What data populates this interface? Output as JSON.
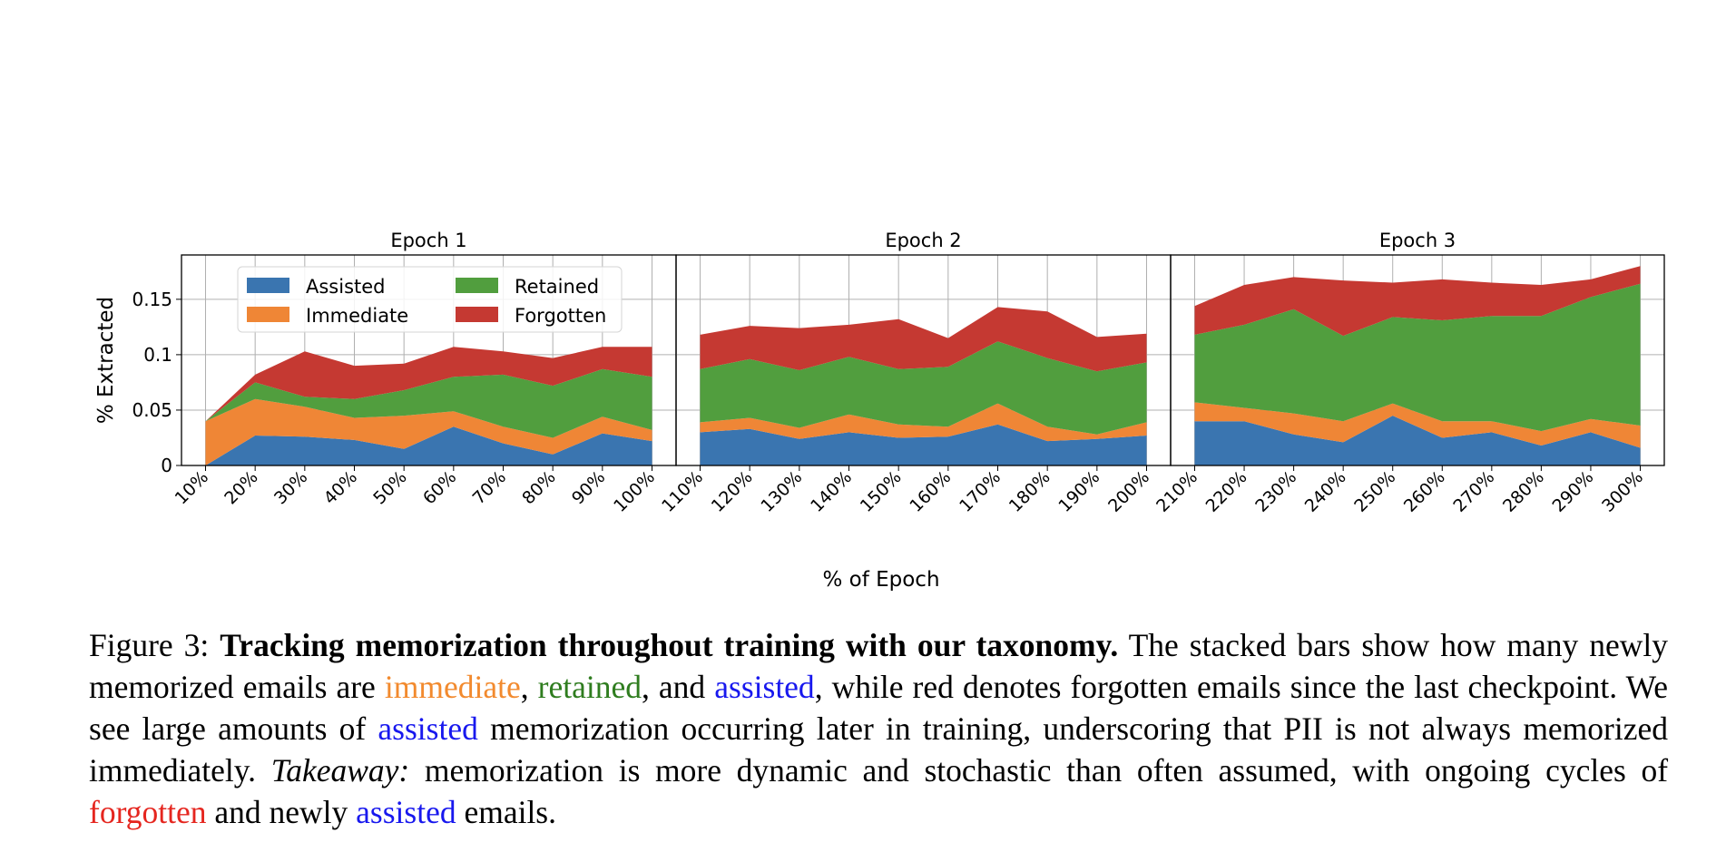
{
  "chart_data": {
    "type": "area",
    "stacked": true,
    "ylabel": "% Extracted",
    "xlabel": "% of Epoch",
    "ylim": [
      0,
      0.19
    ],
    "yticks": [
      0,
      0.05,
      0.1,
      0.15
    ],
    "ytick_labels": [
      "0",
      "0.05",
      "0.1",
      "0.15"
    ],
    "grid": true,
    "legend": {
      "placement": "upper-left of first panel",
      "columns": 2,
      "entries": [
        "Assisted",
        "Immediate",
        "Retained",
        "Forgotten"
      ]
    },
    "colors": {
      "Assisted": "#3a75b0",
      "Immediate": "#ef8636",
      "Retained": "#519e3e",
      "Forgotten": "#c53932"
    },
    "panels": [
      {
        "title": "Epoch 1",
        "x": [
          "10%",
          "20%",
          "30%",
          "40%",
          "50%",
          "60%",
          "70%",
          "80%",
          "90%",
          "100%"
        ],
        "series": [
          {
            "name": "Assisted",
            "values": [
              0,
              0.027,
              0.026,
              0.023,
              0.015,
              0.035,
              0.02,
              0.01,
              0.029,
              0.022
            ]
          },
          {
            "name": "Immediate",
            "values": [
              0.04,
              0.033,
              0.027,
              0.02,
              0.03,
              0.014,
              0.015,
              0.015,
              0.015,
              0.01
            ]
          },
          {
            "name": "Retained",
            "values": [
              0,
              0.015,
              0.009,
              0.017,
              0.023,
              0.031,
              0.047,
              0.047,
              0.043,
              0.048
            ]
          },
          {
            "name": "Forgotten",
            "values": [
              0,
              0.007,
              0.041,
              0.03,
              0.024,
              0.027,
              0.021,
              0.025,
              0.02,
              0.027
            ]
          }
        ]
      },
      {
        "title": "Epoch 2",
        "x": [
          "110%",
          "120%",
          "130%",
          "140%",
          "150%",
          "160%",
          "170%",
          "180%",
          "190%",
          "200%"
        ],
        "series": [
          {
            "name": "Assisted",
            "values": [
              0.03,
              0.033,
              0.024,
              0.03,
              0.025,
              0.026,
              0.037,
              0.022,
              0.024,
              0.027
            ]
          },
          {
            "name": "Immediate",
            "values": [
              0.009,
              0.01,
              0.01,
              0.016,
              0.012,
              0.009,
              0.019,
              0.013,
              0.004,
              0.012
            ]
          },
          {
            "name": "Retained",
            "values": [
              0.048,
              0.053,
              0.052,
              0.052,
              0.05,
              0.054,
              0.056,
              0.062,
              0.057,
              0.054
            ]
          },
          {
            "name": "Forgotten",
            "values": [
              0.031,
              0.03,
              0.038,
              0.029,
              0.045,
              0.026,
              0.031,
              0.042,
              0.031,
              0.026
            ]
          }
        ]
      },
      {
        "title": "Epoch 3",
        "x": [
          "210%",
          "220%",
          "230%",
          "240%",
          "250%",
          "260%",
          "270%",
          "280%",
          "290%",
          "300%"
        ],
        "series": [
          {
            "name": "Assisted",
            "values": [
              0.04,
              0.04,
              0.028,
              0.021,
              0.045,
              0.025,
              0.03,
              0.018,
              0.03,
              0.016
            ]
          },
          {
            "name": "Immediate",
            "values": [
              0.017,
              0.012,
              0.019,
              0.019,
              0.011,
              0.015,
              0.01,
              0.013,
              0.012,
              0.02
            ]
          },
          {
            "name": "Retained",
            "values": [
              0.061,
              0.075,
              0.094,
              0.077,
              0.078,
              0.091,
              0.095,
              0.104,
              0.11,
              0.128
            ]
          },
          {
            "name": "Forgotten",
            "values": [
              0.026,
              0.036,
              0.029,
              0.05,
              0.031,
              0.037,
              0.03,
              0.028,
              0.016,
              0.016
            ]
          }
        ]
      }
    ]
  },
  "caption": {
    "label": "Figure 3:",
    "bold_title": "Tracking memorization throughout training with our taxonomy.",
    "t1": "The stacked bars show how many newly memorized emails are",
    "immediate": "immediate",
    "t2": ",",
    "retained": "retained",
    "t3": ", and",
    "assisted_1": "assisted",
    "t4": ", while red denotes forgotten emails since the last checkpoint. We see large amounts of",
    "assisted_2": "assisted",
    "t5": "memorization occurring later in training, underscoring that PII is not always memorized immediately.",
    "takeaway": "Takeaway:",
    "t6": "memorization is more dynamic and stochastic than often assumed, with ongoing cycles of",
    "forgotten": "forgotten",
    "t7": "and newly",
    "assisted_3": "assisted",
    "t8": "emails."
  }
}
